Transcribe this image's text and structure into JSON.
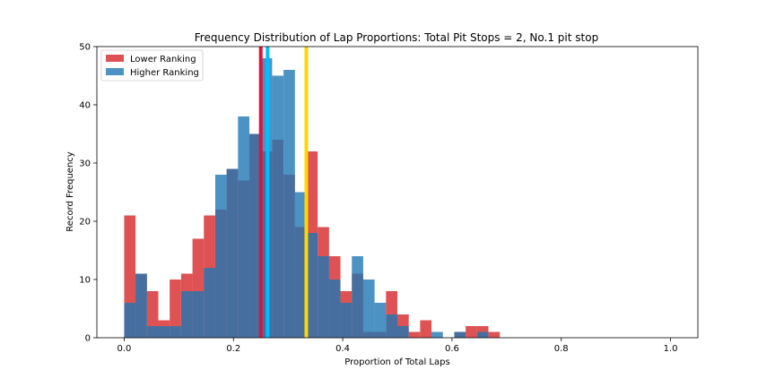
{
  "chart_data": {
    "type": "bar",
    "title": "Frequency Distribution of Lap Proportions: Total Pit Stops = 2, No.1 pit stop",
    "xlabel": "Proportion of Total Laps",
    "ylabel": "Record Frequency",
    "xlim": [
      -0.05,
      1.05
    ],
    "ylim": [
      0,
      50
    ],
    "xticks": [
      0.0,
      0.2,
      0.4,
      0.6,
      0.8,
      1.0
    ],
    "xtick_labels": [
      "0.0",
      "0.2",
      "0.4",
      "0.6",
      "0.8",
      "1.0"
    ],
    "yticks": [
      0,
      10,
      20,
      30,
      40,
      50
    ],
    "ytick_labels": [
      "0",
      "10",
      "20",
      "30",
      "40",
      "50"
    ],
    "legend_position": "top-left",
    "bin_width": 0.0208,
    "bin_starts": [
      0.0,
      0.0208,
      0.0417,
      0.0625,
      0.0833,
      0.1042,
      0.125,
      0.1458,
      0.1667,
      0.1875,
      0.2083,
      0.2292,
      0.25,
      0.2708,
      0.2917,
      0.3125,
      0.3333,
      0.3542,
      0.375,
      0.3958,
      0.4167,
      0.4375,
      0.4583,
      0.4792,
      0.5,
      0.5208,
      0.5417,
      0.5625,
      0.5833,
      0.6042,
      0.625,
      0.6458,
      0.6667
    ],
    "series": [
      {
        "name": "Lower Ranking",
        "color": "#d62728",
        "values": [
          21,
          11,
          8,
          3,
          10,
          11,
          17,
          21,
          22,
          29,
          27,
          35,
          32,
          34,
          28,
          19,
          32,
          19,
          14,
          8,
          11,
          1,
          1,
          8,
          4,
          1,
          3,
          0,
          0,
          1,
          2,
          2,
          1
        ]
      },
      {
        "name": "Higher Ranking",
        "color": "#1f77b4",
        "values": [
          6,
          11,
          2,
          2,
          2,
          8,
          8,
          12,
          28,
          29,
          38,
          35,
          48,
          45,
          46,
          25,
          18,
          14,
          10,
          6,
          14,
          10,
          6,
          4,
          2,
          0,
          0,
          1,
          0,
          1,
          0,
          1,
          0
        ]
      }
    ],
    "vlines": [
      {
        "x": 0.25,
        "color": "#dc143c"
      },
      {
        "x": 0.2625,
        "color": "#00bfff"
      },
      {
        "x": 0.3333,
        "color": "#ffd700"
      }
    ]
  }
}
